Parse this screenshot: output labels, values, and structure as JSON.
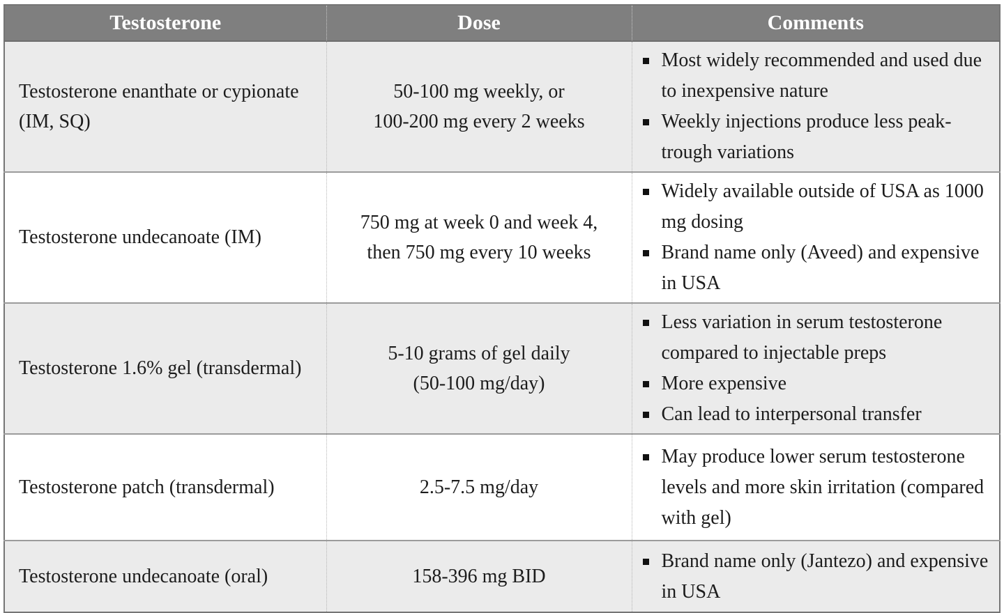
{
  "table": {
    "headers": [
      "Testosterone",
      "Dose",
      "Comments"
    ],
    "rows": [
      {
        "name": "Testosterone enanthate or cypionate (IM, SQ)",
        "dose_lines": [
          "50-100 mg weekly, or",
          "100-200 mg every 2 weeks"
        ],
        "comments": [
          "Most widely recommended and used due to inexpensive nature",
          "Weekly injections produce less peak-trough variations"
        ]
      },
      {
        "name": "Testosterone undecanoate (IM)",
        "dose_lines": [
          "750 mg at week 0 and week 4,",
          "then 750 mg every 10 weeks"
        ],
        "comments": [
          "Widely available outside of USA as 1000 mg dosing",
          "Brand name only (Aveed) and expensive in USA"
        ]
      },
      {
        "name": "Testosterone 1.6% gel (transdermal)",
        "dose_lines": [
          "5-10 grams of gel daily",
          "(50-100 mg/day)"
        ],
        "comments": [
          "Less variation in serum testosterone compared to injectable preps",
          "More expensive",
          "Can lead to interpersonal transfer"
        ]
      },
      {
        "name": "Testosterone patch (transdermal)",
        "dose_lines": [
          "2.5-7.5 mg/day"
        ],
        "comments": [
          "May produce lower serum testosterone levels and more skin irritation (compared with gel)"
        ]
      },
      {
        "name": "Testosterone undecanoate (oral)",
        "dose_lines": [
          "158-396 mg BID"
        ],
        "comments": [
          "Brand name only (Jantezo) and expensive in USA"
        ]
      }
    ],
    "colors": {
      "header_bg": "#7f7f7f",
      "header_text": "#ffffff",
      "row_alt_bg": "#ebebeb",
      "row_bg": "#ffffff",
      "text_color": "#1c1c1c"
    }
  }
}
